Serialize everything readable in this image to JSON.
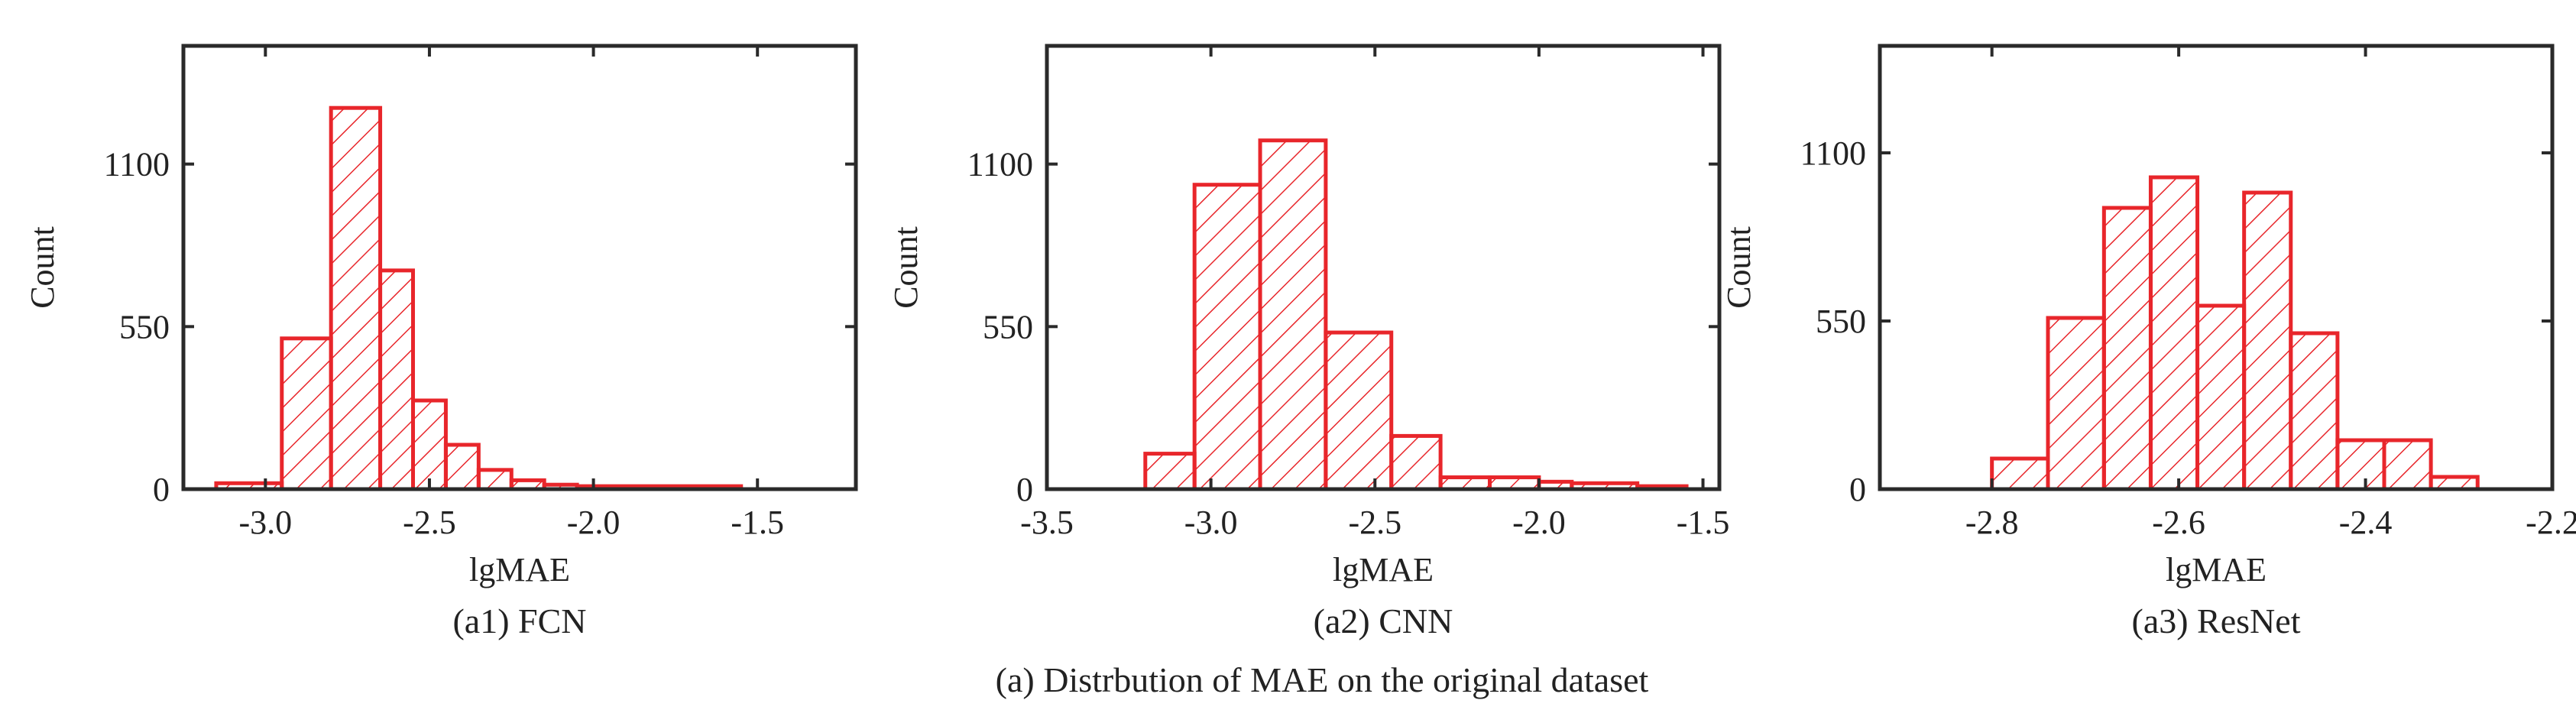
{
  "figure_caption": "(a) Distrbution of  MAE on the original dataset",
  "colors": {
    "bar_stroke": "#e8262b",
    "axis": "#2a2a2a",
    "text": "#222222"
  },
  "chart_data": [
    {
      "type": "bar",
      "subtitle": "(a1) FCN",
      "xlabel": "lgMAE",
      "ylabel": "Count",
      "xlim": [
        -3.25,
        -1.2
      ],
      "ylim": [
        0,
        1500
      ],
      "xticks": [
        -3.0,
        -2.5,
        -2.0,
        -1.5
      ],
      "xtick_labels": [
        "-3.0",
        "-2.5",
        "-2.0",
        "-1.5"
      ],
      "yticks": [
        0,
        550,
        1100
      ],
      "ytick_labels": [
        "0",
        "550",
        "1100"
      ],
      "bin_edges": [
        -3.15,
        -2.95,
        -2.8,
        -2.65,
        -2.55,
        -2.45,
        -2.35,
        -2.25,
        -2.15,
        -2.05,
        -1.55
      ],
      "values": [
        20,
        510,
        1290,
        740,
        300,
        150,
        65,
        30,
        15,
        10
      ]
    },
    {
      "type": "bar",
      "subtitle": "(a2) CNN",
      "xlabel": "lgMAE",
      "ylabel": "Count",
      "xlim": [
        -3.5,
        -1.45
      ],
      "ylim": [
        0,
        1500
      ],
      "xticks": [
        -3.5,
        -3.0,
        -2.5,
        -2.0,
        -1.5
      ],
      "xtick_labels": [
        "-3.5",
        "-3.0",
        "-2.5",
        "-2.0",
        "-1.5"
      ],
      "yticks": [
        0,
        550,
        1100
      ],
      "ytick_labels": [
        "0",
        "550",
        "1100"
      ],
      "bin_edges": [
        -3.2,
        -3.05,
        -2.85,
        -2.65,
        -2.45,
        -2.3,
        -2.15,
        -2.0,
        -1.9,
        -1.7,
        -1.55
      ],
      "values": [
        120,
        1030,
        1180,
        530,
        180,
        40,
        40,
        25,
        20,
        10
      ]
    },
    {
      "type": "bar",
      "subtitle": "(a3) ResNet",
      "xlabel": "lgMAE",
      "ylabel": "Count",
      "xlim": [
        -2.92,
        -2.2
      ],
      "ylim": [
        0,
        1450
      ],
      "xticks": [
        -2.8,
        -2.6,
        -2.4,
        -2.2
      ],
      "xtick_labels": [
        "-2.8",
        "-2.6",
        "-2.4",
        "-2.2"
      ],
      "yticks": [
        0,
        550,
        1100
      ],
      "ytick_labels": [
        "0",
        "550",
        "1100"
      ],
      "bin_edges": [
        -2.8,
        -2.74,
        -2.68,
        -2.63,
        -2.58,
        -2.53,
        -2.48,
        -2.43,
        -2.38,
        -2.33,
        -2.28
      ],
      "values": [
        100,
        560,
        920,
        1020,
        600,
        970,
        510,
        160,
        160,
        40
      ]
    }
  ]
}
